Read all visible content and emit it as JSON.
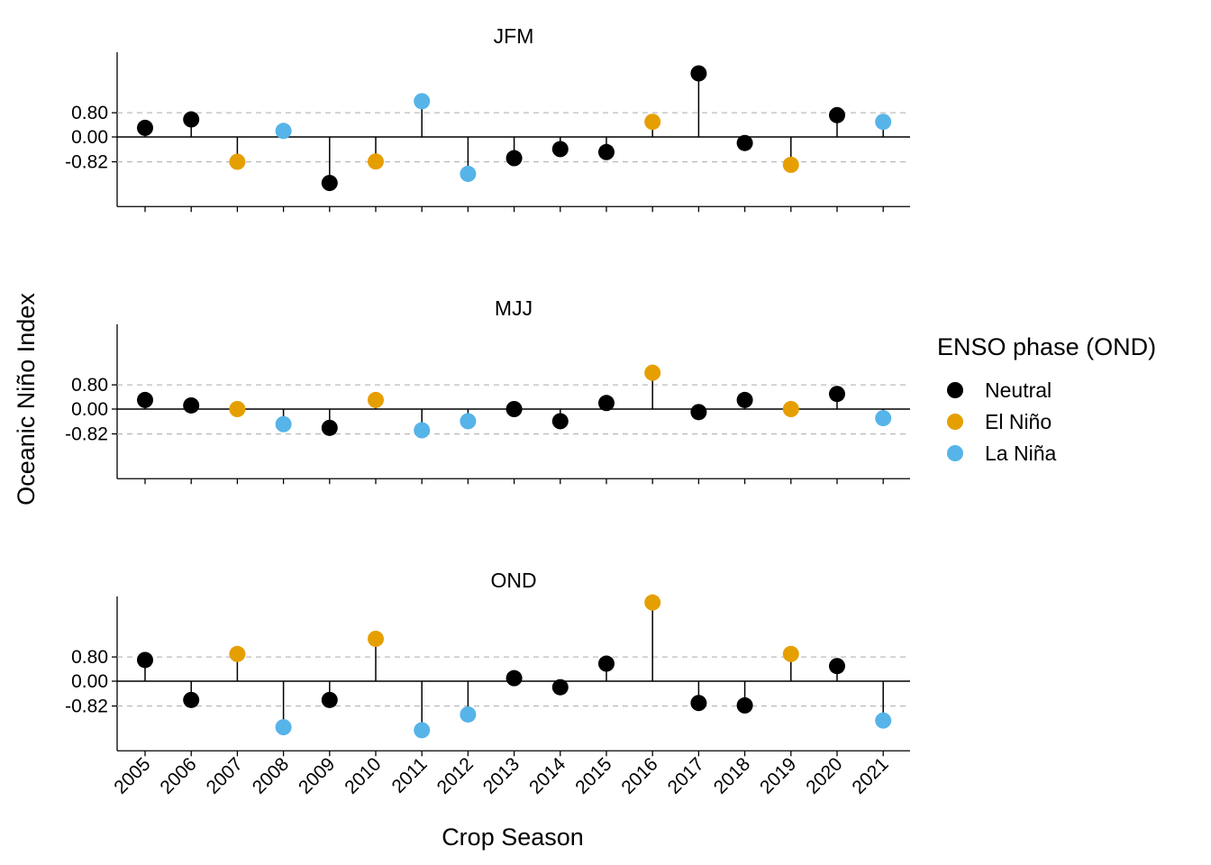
{
  "chart_data": {
    "type": "scatter",
    "subtype": "lollipop-facets",
    "xlabel": "Crop Season",
    "ylabel": "Oceanic Niño Index",
    "x": [
      "2005",
      "2006",
      "2007",
      "2008",
      "2009",
      "2010",
      "2011",
      "2012",
      "2013",
      "2014",
      "2015",
      "2016",
      "2017",
      "2018",
      "2019",
      "2020",
      "2021"
    ],
    "yticks": [
      0.8,
      0.0,
      -0.82
    ],
    "ytick_labels": [
      "0.80",
      "0.00",
      "-0.82"
    ],
    "ylim": [
      -2.3,
      2.8
    ],
    "reference_lines": [
      0.8,
      -0.82
    ],
    "grid": false,
    "legend": {
      "title": "ENSO phase (OND)",
      "position": "right",
      "entries": [
        {
          "key": "neutral",
          "label": "Neutral",
          "color": "#000000"
        },
        {
          "key": "elnino",
          "label": "El Niño",
          "color": "#E69F00"
        },
        {
          "key": "lanina",
          "label": "La Niña",
          "color": "#56B4E9"
        }
      ]
    },
    "phases": [
      "neutral",
      "neutral",
      "elnino",
      "lanina",
      "neutral",
      "elnino",
      "lanina",
      "lanina",
      "neutral",
      "neutral",
      "neutral",
      "elnino",
      "neutral",
      "neutral",
      "elnino",
      "neutral",
      "lanina"
    ],
    "panels": [
      {
        "title": "JFM",
        "values": [
          0.3,
          0.58,
          -0.82,
          0.2,
          -1.52,
          -0.81,
          1.18,
          -1.22,
          -0.7,
          -0.4,
          -0.5,
          0.5,
          2.1,
          -0.2,
          -0.92,
          0.72,
          0.5
        ]
      },
      {
        "title": "MJJ",
        "values": [
          0.3,
          0.12,
          0.0,
          -0.5,
          -0.62,
          0.3,
          -0.7,
          -0.4,
          0.0,
          -0.4,
          0.2,
          1.2,
          -0.1,
          0.3,
          0.0,
          0.5,
          -0.3
        ]
      },
      {
        "title": "OND",
        "values": [
          0.7,
          -0.62,
          0.9,
          -1.52,
          -0.62,
          1.4,
          -1.62,
          -1.1,
          0.1,
          -0.2,
          0.58,
          2.6,
          -0.72,
          -0.8,
          0.9,
          0.5,
          -1.3
        ]
      }
    ]
  }
}
